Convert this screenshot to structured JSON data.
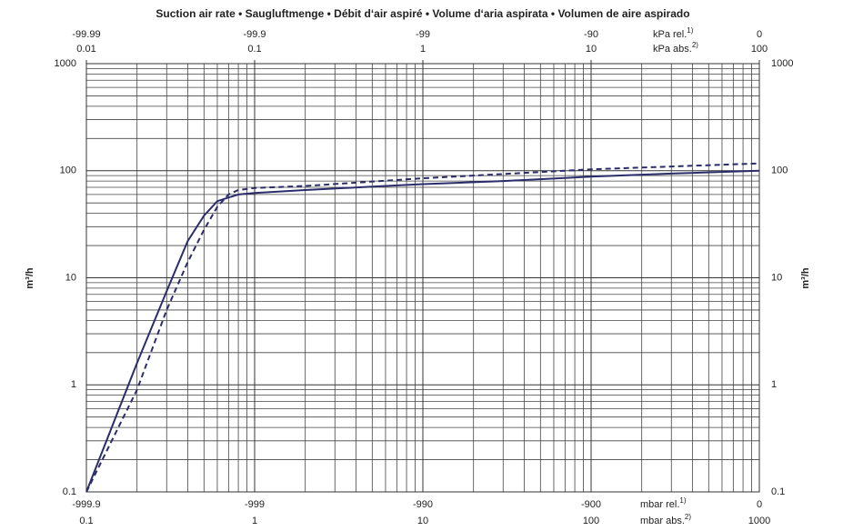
{
  "chart_data": {
    "type": "line",
    "title": "Suction air rate  •  Saugluftmenge  •  Débit d‘air aspiré  •  Volume d‘aria aspirata  •  Volumen de aire aspirado",
    "ylabel": "m³/h",
    "log_x": true,
    "log_y": true,
    "grid": true,
    "xlim": [
      0.1,
      1000
    ],
    "xticks": [
      0.1,
      1,
      10,
      100,
      1000
    ],
    "xticks_rel": [
      -999.9,
      -999,
      -990,
      -900,
      0
    ],
    "xunit_abs": {
      "text": "mbar abs.",
      "sup": "2)"
    },
    "xunit_rel": {
      "text": "mbar rel.",
      "sup": "1)"
    },
    "x2lim": [
      0.01,
      100
    ],
    "x2ticks": [
      0.01,
      0.1,
      1,
      10,
      100
    ],
    "x2ticks_rel": [
      -99.99,
      -99.9,
      -99,
      -90,
      0
    ],
    "x2unit_abs": {
      "text": "kPa abs.",
      "sup": "2)"
    },
    "x2unit_rel": {
      "text": "kPa rel.",
      "sup": "1)"
    },
    "ylim": [
      0.1,
      1000
    ],
    "yticks": [
      0.1,
      1,
      10,
      100,
      1000
    ],
    "series": [
      {
        "color": "#2b2d6a",
        "dash": false,
        "x": [
          0.1,
          0.2,
          0.3,
          0.4,
          0.5,
          0.6,
          0.8,
          1,
          2,
          5,
          10,
          30,
          100,
          300,
          1000
        ],
        "values": [
          0.1,
          1.6,
          7.5,
          22,
          38,
          52,
          60,
          62,
          66,
          71,
          75,
          80,
          88,
          94,
          100
        ]
      },
      {
        "color": "#2b2d6a",
        "dash": true,
        "x": [
          0.1,
          0.2,
          0.3,
          0.4,
          0.5,
          0.6,
          0.7,
          0.8,
          1,
          2,
          10,
          100,
          1000
        ],
        "values": [
          0.1,
          0.9,
          5,
          14,
          28,
          46,
          60,
          66,
          69,
          72,
          85,
          103,
          117
        ]
      }
    ]
  }
}
